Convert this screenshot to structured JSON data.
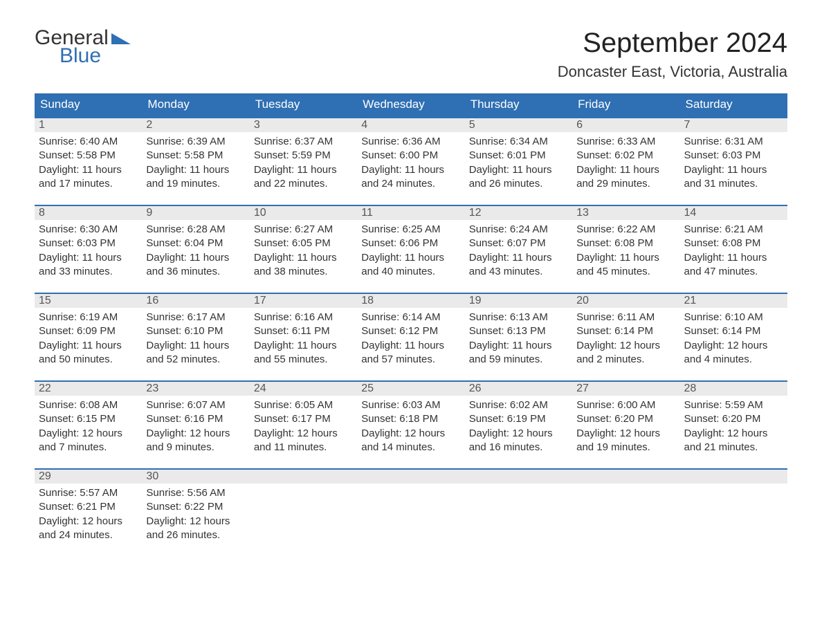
{
  "logo": {
    "text_general": "General",
    "text_blue": "Blue"
  },
  "title": "September 2024",
  "location": "Doncaster East, Victoria, Australia",
  "colors": {
    "header_bg": "#2f6fb3",
    "header_text": "#ffffff",
    "daynum_bg": "#eaeaea",
    "daynum_border": "#2f6fb3",
    "body_text": "#333333",
    "page_bg": "#ffffff"
  },
  "days_of_week": [
    "Sunday",
    "Monday",
    "Tuesday",
    "Wednesday",
    "Thursday",
    "Friday",
    "Saturday"
  ],
  "weeks": [
    [
      {
        "n": "1",
        "sunrise": "Sunrise: 6:40 AM",
        "sunset": "Sunset: 5:58 PM",
        "daylight1": "Daylight: 11 hours",
        "daylight2": "and 17 minutes."
      },
      {
        "n": "2",
        "sunrise": "Sunrise: 6:39 AM",
        "sunset": "Sunset: 5:58 PM",
        "daylight1": "Daylight: 11 hours",
        "daylight2": "and 19 minutes."
      },
      {
        "n": "3",
        "sunrise": "Sunrise: 6:37 AM",
        "sunset": "Sunset: 5:59 PM",
        "daylight1": "Daylight: 11 hours",
        "daylight2": "and 22 minutes."
      },
      {
        "n": "4",
        "sunrise": "Sunrise: 6:36 AM",
        "sunset": "Sunset: 6:00 PM",
        "daylight1": "Daylight: 11 hours",
        "daylight2": "and 24 minutes."
      },
      {
        "n": "5",
        "sunrise": "Sunrise: 6:34 AM",
        "sunset": "Sunset: 6:01 PM",
        "daylight1": "Daylight: 11 hours",
        "daylight2": "and 26 minutes."
      },
      {
        "n": "6",
        "sunrise": "Sunrise: 6:33 AM",
        "sunset": "Sunset: 6:02 PM",
        "daylight1": "Daylight: 11 hours",
        "daylight2": "and 29 minutes."
      },
      {
        "n": "7",
        "sunrise": "Sunrise: 6:31 AM",
        "sunset": "Sunset: 6:03 PM",
        "daylight1": "Daylight: 11 hours",
        "daylight2": "and 31 minutes."
      }
    ],
    [
      {
        "n": "8",
        "sunrise": "Sunrise: 6:30 AM",
        "sunset": "Sunset: 6:03 PM",
        "daylight1": "Daylight: 11 hours",
        "daylight2": "and 33 minutes."
      },
      {
        "n": "9",
        "sunrise": "Sunrise: 6:28 AM",
        "sunset": "Sunset: 6:04 PM",
        "daylight1": "Daylight: 11 hours",
        "daylight2": "and 36 minutes."
      },
      {
        "n": "10",
        "sunrise": "Sunrise: 6:27 AM",
        "sunset": "Sunset: 6:05 PM",
        "daylight1": "Daylight: 11 hours",
        "daylight2": "and 38 minutes."
      },
      {
        "n": "11",
        "sunrise": "Sunrise: 6:25 AM",
        "sunset": "Sunset: 6:06 PM",
        "daylight1": "Daylight: 11 hours",
        "daylight2": "and 40 minutes."
      },
      {
        "n": "12",
        "sunrise": "Sunrise: 6:24 AM",
        "sunset": "Sunset: 6:07 PM",
        "daylight1": "Daylight: 11 hours",
        "daylight2": "and 43 minutes."
      },
      {
        "n": "13",
        "sunrise": "Sunrise: 6:22 AM",
        "sunset": "Sunset: 6:08 PM",
        "daylight1": "Daylight: 11 hours",
        "daylight2": "and 45 minutes."
      },
      {
        "n": "14",
        "sunrise": "Sunrise: 6:21 AM",
        "sunset": "Sunset: 6:08 PM",
        "daylight1": "Daylight: 11 hours",
        "daylight2": "and 47 minutes."
      }
    ],
    [
      {
        "n": "15",
        "sunrise": "Sunrise: 6:19 AM",
        "sunset": "Sunset: 6:09 PM",
        "daylight1": "Daylight: 11 hours",
        "daylight2": "and 50 minutes."
      },
      {
        "n": "16",
        "sunrise": "Sunrise: 6:17 AM",
        "sunset": "Sunset: 6:10 PM",
        "daylight1": "Daylight: 11 hours",
        "daylight2": "and 52 minutes."
      },
      {
        "n": "17",
        "sunrise": "Sunrise: 6:16 AM",
        "sunset": "Sunset: 6:11 PM",
        "daylight1": "Daylight: 11 hours",
        "daylight2": "and 55 minutes."
      },
      {
        "n": "18",
        "sunrise": "Sunrise: 6:14 AM",
        "sunset": "Sunset: 6:12 PM",
        "daylight1": "Daylight: 11 hours",
        "daylight2": "and 57 minutes."
      },
      {
        "n": "19",
        "sunrise": "Sunrise: 6:13 AM",
        "sunset": "Sunset: 6:13 PM",
        "daylight1": "Daylight: 11 hours",
        "daylight2": "and 59 minutes."
      },
      {
        "n": "20",
        "sunrise": "Sunrise: 6:11 AM",
        "sunset": "Sunset: 6:14 PM",
        "daylight1": "Daylight: 12 hours",
        "daylight2": "and 2 minutes."
      },
      {
        "n": "21",
        "sunrise": "Sunrise: 6:10 AM",
        "sunset": "Sunset: 6:14 PM",
        "daylight1": "Daylight: 12 hours",
        "daylight2": "and 4 minutes."
      }
    ],
    [
      {
        "n": "22",
        "sunrise": "Sunrise: 6:08 AM",
        "sunset": "Sunset: 6:15 PM",
        "daylight1": "Daylight: 12 hours",
        "daylight2": "and 7 minutes."
      },
      {
        "n": "23",
        "sunrise": "Sunrise: 6:07 AM",
        "sunset": "Sunset: 6:16 PM",
        "daylight1": "Daylight: 12 hours",
        "daylight2": "and 9 minutes."
      },
      {
        "n": "24",
        "sunrise": "Sunrise: 6:05 AM",
        "sunset": "Sunset: 6:17 PM",
        "daylight1": "Daylight: 12 hours",
        "daylight2": "and 11 minutes."
      },
      {
        "n": "25",
        "sunrise": "Sunrise: 6:03 AM",
        "sunset": "Sunset: 6:18 PM",
        "daylight1": "Daylight: 12 hours",
        "daylight2": "and 14 minutes."
      },
      {
        "n": "26",
        "sunrise": "Sunrise: 6:02 AM",
        "sunset": "Sunset: 6:19 PM",
        "daylight1": "Daylight: 12 hours",
        "daylight2": "and 16 minutes."
      },
      {
        "n": "27",
        "sunrise": "Sunrise: 6:00 AM",
        "sunset": "Sunset: 6:20 PM",
        "daylight1": "Daylight: 12 hours",
        "daylight2": "and 19 minutes."
      },
      {
        "n": "28",
        "sunrise": "Sunrise: 5:59 AM",
        "sunset": "Sunset: 6:20 PM",
        "daylight1": "Daylight: 12 hours",
        "daylight2": "and 21 minutes."
      }
    ],
    [
      {
        "n": "29",
        "sunrise": "Sunrise: 5:57 AM",
        "sunset": "Sunset: 6:21 PM",
        "daylight1": "Daylight: 12 hours",
        "daylight2": "and 24 minutes."
      },
      {
        "n": "30",
        "sunrise": "Sunrise: 5:56 AM",
        "sunset": "Sunset: 6:22 PM",
        "daylight1": "Daylight: 12 hours",
        "daylight2": "and 26 minutes."
      },
      {
        "n": "",
        "sunrise": "",
        "sunset": "",
        "daylight1": "",
        "daylight2": ""
      },
      {
        "n": "",
        "sunrise": "",
        "sunset": "",
        "daylight1": "",
        "daylight2": ""
      },
      {
        "n": "",
        "sunrise": "",
        "sunset": "",
        "daylight1": "",
        "daylight2": ""
      },
      {
        "n": "",
        "sunrise": "",
        "sunset": "",
        "daylight1": "",
        "daylight2": ""
      },
      {
        "n": "",
        "sunrise": "",
        "sunset": "",
        "daylight1": "",
        "daylight2": ""
      }
    ]
  ]
}
